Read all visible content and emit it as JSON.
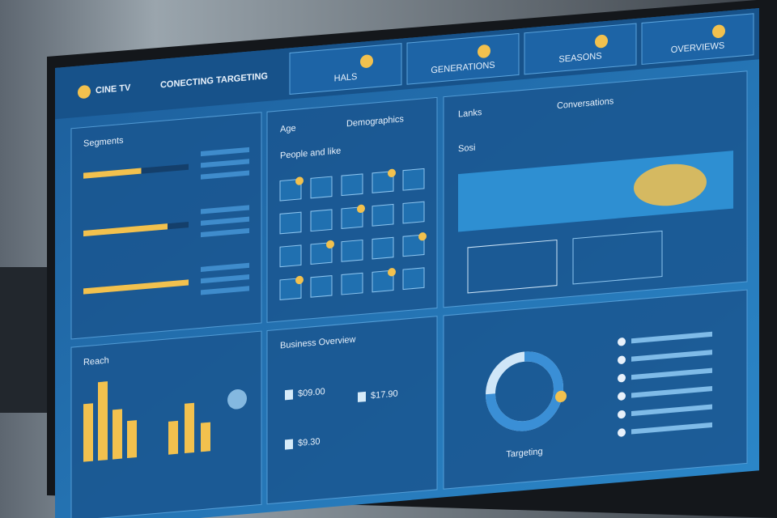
{
  "header": {
    "logo": "CINE TV",
    "title": "CONECTING TARGETING",
    "tabs": [
      "HALS",
      "GENERATIONS",
      "SEASONS",
      "OVERVIEWS"
    ]
  },
  "segments": {
    "title": "Segments",
    "progress": [
      55,
      80,
      100
    ]
  },
  "audience": {
    "title": "Age",
    "subtitle": "Demographics",
    "caption": "People and like"
  },
  "reach": {
    "title": "Lanks",
    "subtitle": "Conversations",
    "caption": "Sosi"
  },
  "bars": {
    "title": "Reach",
    "values": [
      70,
      95,
      60,
      45
    ],
    "mini": [
      40,
      60,
      35
    ]
  },
  "prices": {
    "title": "Business Overview",
    "items": [
      "$09.00",
      "$17.90",
      "$9.30"
    ]
  },
  "donut": {
    "value": 75,
    "caption": "Targeting"
  }
}
